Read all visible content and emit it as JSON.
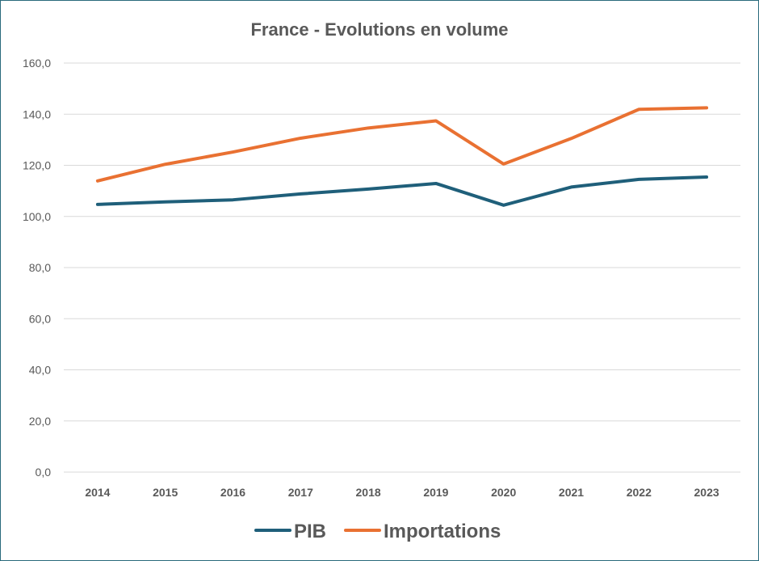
{
  "chart_data": {
    "type": "line",
    "title": "France - Evolutions en volume",
    "xlabel": "",
    "ylabel": "",
    "categories": [
      "2014",
      "2015",
      "2016",
      "2017",
      "2018",
      "2019",
      "2020",
      "2021",
      "2022",
      "2023"
    ],
    "yticks": [
      "0,0",
      "20,0",
      "40,0",
      "60,0",
      "80,0",
      "100,0",
      "120,0",
      "140,0",
      "160,0"
    ],
    "ylim": [
      0,
      160
    ],
    "grid": true,
    "legend_position": "bottom",
    "series": [
      {
        "name": "PIB",
        "color": "#1f5f7a",
        "values": [
          104.7,
          105.7,
          106.5,
          108.8,
          110.7,
          112.9,
          104.4,
          111.5,
          114.5,
          115.4
        ]
      },
      {
        "name": "Importations",
        "color": "#e97132",
        "values": [
          113.9,
          120.4,
          125.2,
          130.6,
          134.6,
          137.4,
          120.5,
          130.5,
          141.9,
          142.5
        ]
      }
    ]
  }
}
